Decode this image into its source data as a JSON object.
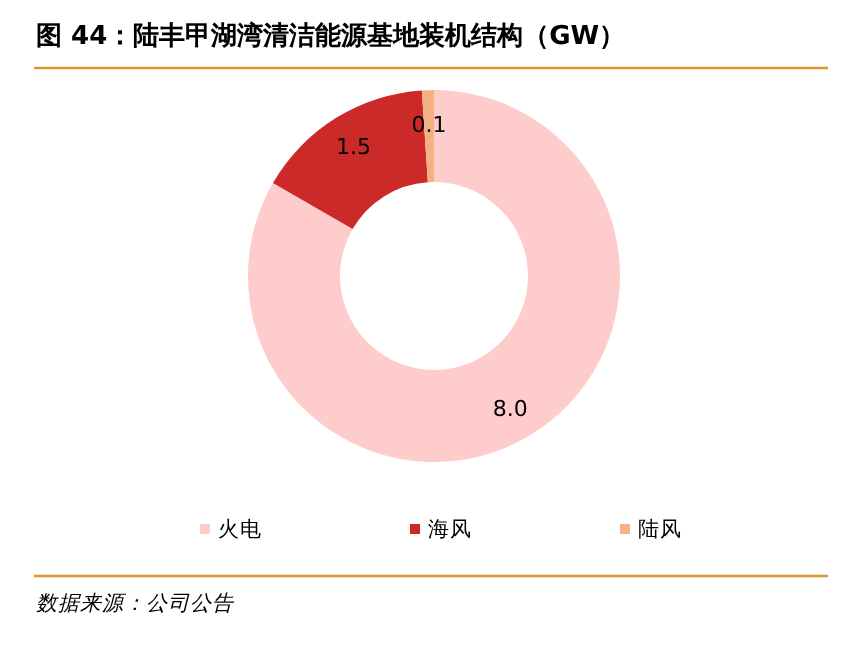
{
  "chart_data": {
    "type": "donut",
    "title": "图 44：陆丰甲湖湾清洁能源基地装机结构（GW）",
    "categories": [
      "火电",
      "海风",
      "陆风"
    ],
    "values": [
      8.0,
      1.5,
      0.1
    ],
    "colors": [
      "#ffcccc",
      "#cc2929",
      "#f4b183"
    ],
    "value_labels": [
      "8.0",
      "1.5",
      "0.1"
    ],
    "legend": "bottom",
    "annotations": [
      "数据来源：公司公告"
    ]
  }
}
